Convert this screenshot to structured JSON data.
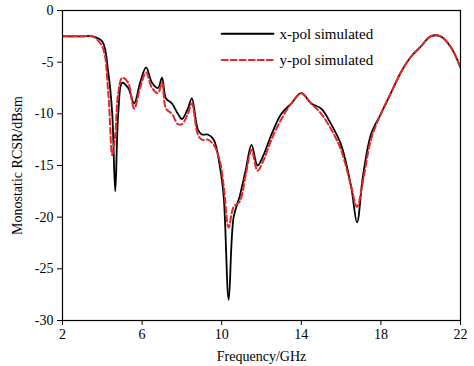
{
  "chart_data": {
    "type": "line",
    "x_label": "Frequency/GHz",
    "y_label": "Monostatic RCSR/dBsm",
    "x": [
      2,
      3,
      3.5,
      4,
      4.3,
      4.5,
      4.65,
      4.8,
      5,
      5.3,
      5.6,
      5.9,
      6.2,
      6.5,
      6.8,
      7,
      7.2,
      7.5,
      7.8,
      8,
      8.3,
      8.5,
      8.8,
      9,
      9.3,
      9.6,
      9.9,
      10.1,
      10.35,
      10.6,
      10.9,
      11.2,
      11.5,
      11.8,
      12.1,
      12.5,
      13,
      13.5,
      14,
      14.5,
      15,
      15.5,
      16,
      16.5,
      16.8,
      17.1,
      17.5,
      18,
      18.5,
      19,
      19.5,
      20,
      20.5,
      21,
      21.5,
      22
    ],
    "series": [
      {
        "name": "x-pol simulated",
        "color": "#000000",
        "line_style": "solid",
        "values": [
          -2.5,
          -2.5,
          -2.5,
          -3,
          -6,
          -10,
          -17.5,
          -10,
          -7,
          -7.5,
          -9,
          -7,
          -5.5,
          -7,
          -7.5,
          -6.5,
          -8.5,
          -9,
          -10,
          -10.5,
          -9.5,
          -8.5,
          -11.5,
          -12,
          -12,
          -12.5,
          -15,
          -18,
          -28,
          -20,
          -18,
          -15.5,
          -13,
          -15,
          -14,
          -12,
          -10,
          -9,
          -8,
          -9,
          -9.5,
          -11,
          -13,
          -17,
          -20.5,
          -16,
          -12,
          -10,
          -8,
          -6,
          -4.5,
          -3.5,
          -2.5,
          -2.5,
          -3.5,
          -5.5
        ]
      },
      {
        "name": "y-pol simulated",
        "color": "#e8262a",
        "line_style": "dashed",
        "values": [
          -2.5,
          -2.5,
          -2.5,
          -3.5,
          -8,
          -14,
          -12,
          -8,
          -6.5,
          -7,
          -9.5,
          -7.5,
          -6,
          -7.5,
          -8,
          -7,
          -9.5,
          -10,
          -11,
          -11,
          -10,
          -9,
          -12,
          -12.5,
          -12.5,
          -13,
          -14.5,
          -17,
          -21,
          -19,
          -18.5,
          -16,
          -13.5,
          -15.5,
          -14.5,
          -12.5,
          -10.5,
          -9,
          -8,
          -9,
          -10,
          -11.5,
          -13.5,
          -17,
          -19,
          -16.5,
          -12.5,
          -10,
          -8,
          -6,
          -4.5,
          -3.5,
          -2.5,
          -2.5,
          -3.5,
          -5.5
        ]
      }
    ],
    "xlim": [
      2,
      22
    ],
    "xticks": [
      2,
      6,
      10,
      14,
      18,
      22
    ],
    "ylim": [
      -30,
      0
    ],
    "yticks": [
      -30,
      -25,
      -20,
      -15,
      -10,
      -5,
      0
    ],
    "grid": false,
    "legend": "top-right"
  }
}
